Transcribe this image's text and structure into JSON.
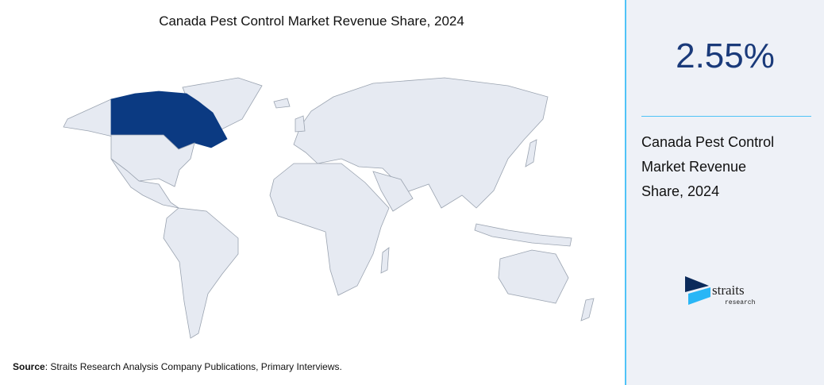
{
  "header": {
    "title": "Canada Pest Control Market Revenue Share, 2024"
  },
  "panel": {
    "share": "2.55%",
    "caption_lines": [
      "Canada Pest Control",
      "Market Revenue",
      "Share, 2024"
    ]
  },
  "logo": {
    "name": "straits",
    "tagline": "research"
  },
  "footer": {
    "source_label": "Source",
    "source_text": ": Straits Research Analysis Company Publications, Primary Interviews."
  }
}
